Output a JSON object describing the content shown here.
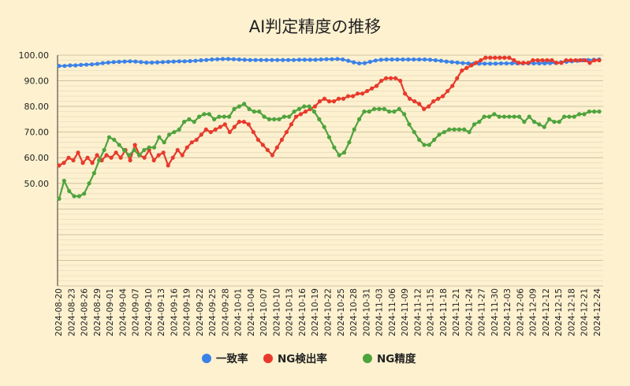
{
  "chart_data": {
    "type": "line",
    "title": "AI判定精度の推移",
    "xlabel": "",
    "ylabel": "",
    "ylim": [
      10,
      100
    ],
    "yticks": [
      "100.00",
      "90.00",
      "80.00",
      "70.00",
      "60.00",
      "50.00"
    ],
    "ytick_values": [
      100,
      90,
      80,
      70,
      60,
      50
    ],
    "x_tick_labels": [
      "2024-08-20",
      "2024-08-23",
      "2024-08-26",
      "2024-08-29",
      "2024-09-01",
      "2024-09-04",
      "2024-09-07",
      "2024-09-10",
      "2024-09-13",
      "2024-09-16",
      "2024-09-19",
      "2024-09-22",
      "2024-09-25",
      "2024-09-28",
      "2024-10-01",
      "2024-10-04",
      "2024-10-07",
      "2024-10-10",
      "2024-10-13",
      "2024-10-16",
      "2024-10-19",
      "2024-10-22",
      "2024-10-25",
      "2024-10-28",
      "2024-10-31",
      "2024-11-03",
      "2024-11-06",
      "2024-11-09",
      "2024-11-12",
      "2024-11-15",
      "2024-11-18",
      "2024-11-21",
      "2024-11-24",
      "2024-11-27",
      "2024-11-30",
      "2024-12-03",
      "2024-12-06",
      "2024-12-09",
      "2024-12-12",
      "2024-12-15",
      "2024-12-18",
      "2024-12-21",
      "2024-12-24"
    ],
    "legend_position": "bottom",
    "grid": true,
    "series": [
      {
        "name": "一致率",
        "color": "#3b82e8",
        "values": [
          95.8,
          95.8,
          96,
          96,
          96.2,
          96.3,
          96.4,
          96.6,
          96.9,
          97.1,
          97.3,
          97.4,
          97.5,
          97.6,
          97.5,
          97.3,
          97.1,
          97.1,
          97.2,
          97.3,
          97.4,
          97.5,
          97.6,
          97.6,
          97.7,
          97.8,
          98,
          98.1,
          98.3,
          98.4,
          98.5,
          98.5,
          98.4,
          98.3,
          98.2,
          98.1,
          98.1,
          98.1,
          98.1,
          98.1,
          98.1,
          98.1,
          98.1,
          98.1,
          98.2,
          98.2,
          98.2,
          98.2,
          98.3,
          98.4,
          98.4,
          98.5,
          98.3,
          97.8,
          97.2,
          96.8,
          96.9,
          97.4,
          97.9,
          98.2,
          98.3,
          98.3,
          98.3,
          98.3,
          98.3,
          98.3,
          98.3,
          98.3,
          98.2,
          98,
          97.8,
          97.5,
          97.3,
          97.1,
          96.9,
          96.8,
          96.7,
          96.7,
          96.7,
          96.7,
          96.7,
          96.8,
          96.8,
          96.8,
          96.8,
          96.8,
          96.8,
          96.8,
          96.8,
          96.8,
          96.9,
          97,
          97.2,
          97.4,
          97.6,
          97.8,
          98,
          98.1,
          98.2,
          98.3
        ]
      },
      {
        "name": "NG検出率",
        "color": "#e8392b",
        "values": [
          57,
          58,
          60,
          59,
          62,
          58,
          60,
          58,
          61,
          59,
          61,
          60,
          62,
          60,
          63,
          59,
          65,
          61,
          60,
          63,
          59,
          61,
          62,
          57,
          60,
          63,
          61,
          64,
          66,
          67,
          69,
          71,
          70,
          71,
          72,
          73,
          70,
          72,
          74,
          74,
          73,
          70,
          67,
          65,
          63,
          61,
          64,
          67,
          70,
          73,
          76,
          77,
          78,
          79,
          80,
          82,
          83,
          82,
          82,
          83,
          83,
          84,
          84,
          85,
          85,
          86,
          87,
          88,
          90,
          91,
          91,
          91,
          90,
          85,
          83,
          82,
          81,
          79,
          80,
          82,
          83,
          84,
          86,
          88,
          91,
          94,
          95,
          96,
          97,
          98,
          99,
          99,
          99,
          99,
          99,
          99,
          98,
          97,
          97,
          97,
          98,
          98,
          98,
          98,
          98,
          97,
          97,
          98,
          98,
          98,
          98,
          98,
          97,
          98,
          98
        ]
      },
      {
        "name": "NG精度",
        "color": "#4ea33c",
        "values": [
          44,
          51,
          47,
          45,
          45,
          46,
          50,
          54,
          59,
          63,
          68,
          67,
          65,
          63,
          61,
          63,
          61,
          63,
          64,
          64,
          68,
          66,
          69,
          70,
          71,
          74,
          75,
          74,
          76,
          77,
          77,
          75,
          76,
          76,
          76,
          79,
          80,
          81,
          79,
          78,
          78,
          76,
          75,
          75,
          75,
          76,
          76,
          78,
          79,
          80,
          80,
          78,
          75,
          72,
          68,
          64,
          61,
          62,
          66,
          71,
          75,
          78,
          78,
          79,
          79,
          79,
          78,
          78,
          79,
          77,
          73,
          70,
          67,
          65,
          65,
          67,
          69,
          70,
          71,
          71,
          71,
          71,
          70,
          73,
          74,
          76,
          76,
          77,
          76,
          76,
          76,
          76,
          76,
          74,
          76,
          74,
          73,
          72,
          75,
          74,
          74,
          76,
          76,
          76,
          77,
          77,
          78,
          78,
          78
        ]
      }
    ]
  }
}
